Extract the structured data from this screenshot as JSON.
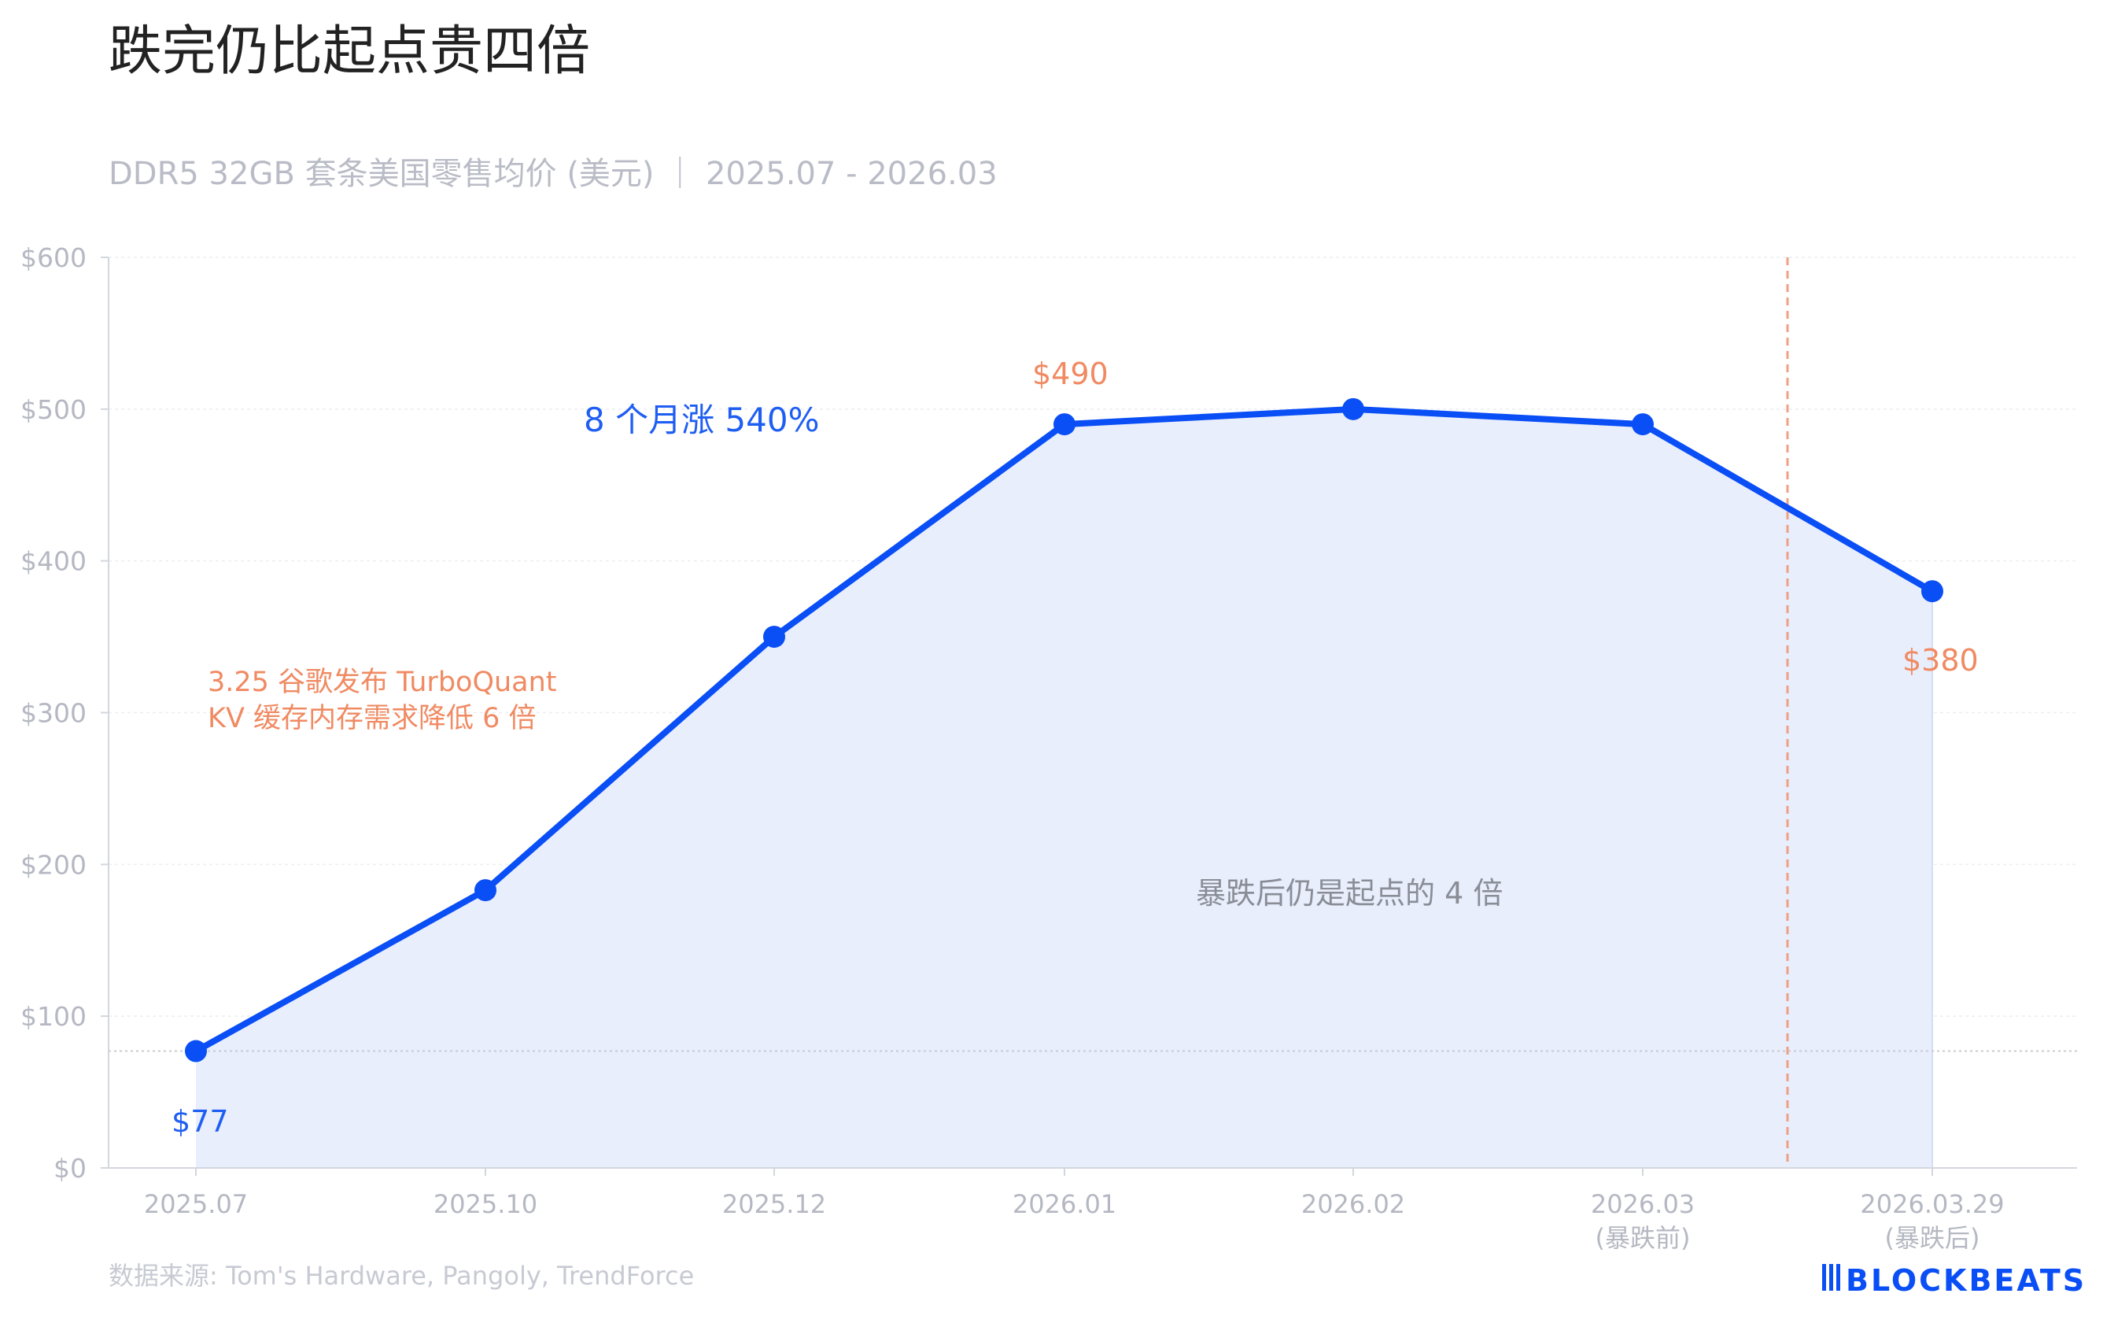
{
  "title": "跌完仍比起点贵四倍",
  "subtitle": "DDR5 32GB 套条美国零售均价 (美元) ｜ 2025.07 - 2026.03",
  "source": "数据来源: Tom's Hardware, Pangoly, TrendForce",
  "logo": "BLOCKBEATS",
  "colors": {
    "line": "#0a4ef5",
    "area": "#e8eefc",
    "annotation_blue": "#1f5ef2",
    "annotation_orange": "#f08a62",
    "event_line": "#f0a085",
    "axis_text": "#b5b8c2"
  },
  "annotations": {
    "rise": "8 个月涨 540%",
    "event_line1": "3.25 谷歌发布 TurboQuant",
    "event_line2": "KV 缓存内存需求降低 6 倍",
    "summary": "暴跌后仍是起点的 4 倍",
    "start_label": "$77",
    "peak_label": "$490",
    "end_label": "$380"
  },
  "chart_data": {
    "type": "area",
    "title": "跌完仍比起点贵四倍",
    "subtitle": "DDR5 32GB 套条美国零售均价 (美元) ｜ 2025.07 - 2026.03",
    "categories": [
      "2025.07",
      "2025.10",
      "2025.12",
      "2026.01",
      "2026.02",
      "2026.03",
      "2026.03.29"
    ],
    "category_sublabels": [
      "",
      "",
      "",
      "",
      "",
      "(暴跌前)",
      "(暴跌后)"
    ],
    "values": [
      77,
      183,
      350,
      490,
      500,
      490,
      380
    ],
    "y_ticks": [
      "$0",
      "$100",
      "$200",
      "$300",
      "$400",
      "$500",
      "$600"
    ],
    "ylim": [
      0,
      600
    ],
    "grid": true,
    "reference_line": 77,
    "event_marker": "2026.03 – 2026.03.29 (3.25)"
  }
}
